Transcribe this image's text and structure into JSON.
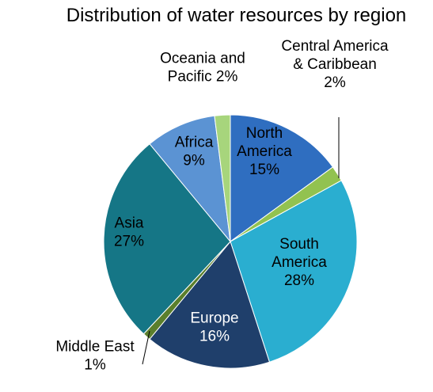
{
  "chart_data": {
    "type": "pie",
    "title": "Distribution of water resources by region",
    "slices": [
      {
        "name": "North America",
        "label_lines": [
          "North",
          "America",
          "15%"
        ],
        "value": 15,
        "color": "#2f6ec0",
        "label_color": "#000000"
      },
      {
        "name": "Central America & Caribbean",
        "label_lines": [
          "Central America",
          "& Caribbean",
          "2%"
        ],
        "value": 2,
        "color": "#92c250",
        "label_color": "#000000"
      },
      {
        "name": "South America",
        "label_lines": [
          "South",
          "America",
          "28%"
        ],
        "value": 28,
        "color": "#2aaed0",
        "label_color": "#000000"
      },
      {
        "name": "Europe",
        "label_lines": [
          "Europe",
          "16%"
        ],
        "value": 16,
        "color": "#1f3f6b",
        "label_color": "#ffffff"
      },
      {
        "name": "Middle East",
        "label_lines": [
          "Middle East",
          "1%"
        ],
        "value": 1,
        "color": "#5b7f2c",
        "label_color": "#000000"
      },
      {
        "name": "Asia",
        "label_lines": [
          "Asia",
          "27%"
        ],
        "value": 27,
        "color": "#157686",
        "label_color": "#000000"
      },
      {
        "name": "Africa",
        "label_lines": [
          "Africa",
          "9%"
        ],
        "value": 9,
        "color": "#5b93d3",
        "label_color": "#000000"
      },
      {
        "name": "Oceania and Pacific",
        "label_lines": [
          "Oceania and",
          "Pacific 2%"
        ],
        "value": 2,
        "color": "#a7d57c",
        "label_color": "#000000"
      }
    ],
    "legend": "none"
  }
}
